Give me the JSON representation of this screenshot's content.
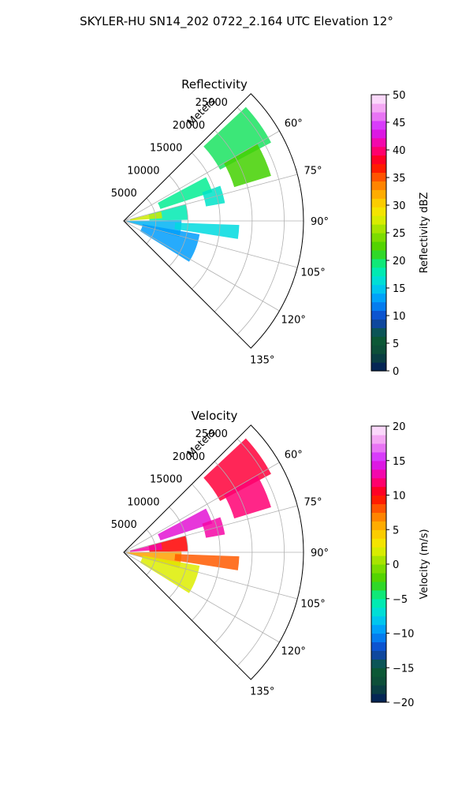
{
  "figure": {
    "suptitle": "SKYLER-HU  SN14_202  0722_2.164 UTC Elevation 12°",
    "range_unit_label": "Meters"
  },
  "chart_data": [
    {
      "type": "heatmap",
      "projection": "polar-sector",
      "title": "Reflectivity",
      "variable": "reflectivity",
      "azimuth_range_deg": [
        45,
        135
      ],
      "range_limit_m": [
        0,
        28000
      ],
      "range_ticks": [
        "5000",
        "10000",
        "15000",
        "20000",
        "25000"
      ],
      "azimuth_ticks": [
        "60°",
        "75°",
        "90°",
        "105°",
        "120°",
        "135°"
      ],
      "grid": true,
      "colorbar": {
        "label": "Reflectivity dBZ",
        "vmin": 0,
        "vmax": 50,
        "ticks": [
          "0",
          "5",
          "10",
          "15",
          "20",
          "25",
          "30",
          "35",
          "40",
          "45",
          "50"
        ],
        "stops": [
          "#021a5e",
          "#0d4a3a",
          "#0b5c34",
          "#1040c0",
          "#0090ff",
          "#00d8e8",
          "#00f0a0",
          "#40d000",
          "#90e000",
          "#f0f000",
          "#ffc000",
          "#ff7000",
          "#ff0000",
          "#ff0090",
          "#d020ff",
          "#f090f0",
          "#fff0ff"
        ]
      },
      "echo_regions": [
        {
          "az": [
            47,
            62
          ],
          "range_m": [
            17000,
            26000
          ],
          "value": 20
        },
        {
          "az": [
            60,
            73
          ],
          "range_m": [
            18000,
            24000
          ],
          "value": 22
        },
        {
          "az": [
            62,
            72
          ],
          "range_m": [
            6000,
            14500
          ],
          "value": 19
        },
        {
          "az": [
            75,
            89
          ],
          "range_m": [
            4000,
            10000
          ],
          "value": 18
        },
        {
          "az": [
            76,
            86
          ],
          "range_m": [
            1000,
            6000
          ],
          "value": 27
        },
        {
          "az": [
            89,
            106
          ],
          "range_m": [
            500,
            9000
          ],
          "value": 14
        },
        {
          "az": [
            100,
            122
          ],
          "range_m": [
            3000,
            12000
          ],
          "value": 13
        },
        {
          "az": [
            92,
            99
          ],
          "range_m": [
            8000,
            18000
          ],
          "value": 16
        },
        {
          "az": [
            70,
            80
          ],
          "range_m": [
            13000,
            16000
          ],
          "value": 17
        }
      ]
    },
    {
      "type": "heatmap",
      "projection": "polar-sector",
      "title": "Velocity",
      "variable": "radial_velocity",
      "azimuth_range_deg": [
        45,
        135
      ],
      "range_limit_m": [
        0,
        28000
      ],
      "range_ticks": [
        "5000",
        "10000",
        "15000",
        "20000",
        "25000"
      ],
      "azimuth_ticks": [
        "60°",
        "75°",
        "90°",
        "105°",
        "120°",
        "135°"
      ],
      "grid": true,
      "colorbar": {
        "label": "Velocity (m/s)",
        "vmin": -20,
        "vmax": 20,
        "ticks": [
          "−20",
          "−15",
          "−10",
          "−5",
          "0",
          "5",
          "10",
          "15",
          "20"
        ],
        "stops": [
          "#021a5e",
          "#0d4a3a",
          "#0b5c34",
          "#1040c0",
          "#0090ff",
          "#00d8e8",
          "#00f0a0",
          "#40d000",
          "#90e000",
          "#f0f000",
          "#ffc000",
          "#ff7000",
          "#ff0000",
          "#ff0090",
          "#d020ff",
          "#f090f0",
          "#fff0ff"
        ]
      },
      "echo_regions": [
        {
          "az": [
            47,
            62
          ],
          "range_m": [
            17000,
            26000
          ],
          "value": 11
        },
        {
          "az": [
            60,
            73
          ],
          "range_m": [
            18000,
            24000
          ],
          "value": 12
        },
        {
          "az": [
            62,
            72
          ],
          "range_m": [
            6000,
            14500
          ],
          "value": 14
        },
        {
          "az": [
            75,
            89
          ],
          "range_m": [
            4000,
            10000
          ],
          "value": 10
        },
        {
          "az": [
            76,
            86
          ],
          "range_m": [
            1000,
            6000
          ],
          "value": 13
        },
        {
          "az": [
            89,
            106
          ],
          "range_m": [
            500,
            9000
          ],
          "value": 6
        },
        {
          "az": [
            100,
            122
          ],
          "range_m": [
            3000,
            12000
          ],
          "value": 2
        },
        {
          "az": [
            92,
            99
          ],
          "range_m": [
            8000,
            18000
          ],
          "value": 8
        },
        {
          "az": [
            70,
            80
          ],
          "range_m": [
            13000,
            16000
          ],
          "value": 13
        }
      ]
    }
  ]
}
